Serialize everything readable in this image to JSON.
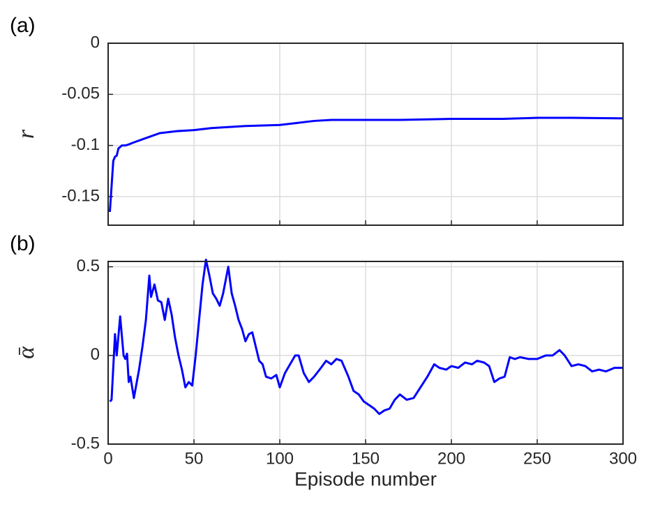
{
  "chart_data": [
    {
      "type": "line",
      "panel_label": "(a)",
      "ylabel": "r",
      "color": "#0000ff",
      "grid": true,
      "show_xticklabels": false,
      "x": [
        1,
        2,
        3,
        4,
        5,
        6,
        8,
        10,
        12,
        15,
        20,
        25,
        30,
        40,
        50,
        60,
        70,
        80,
        90,
        100,
        110,
        120,
        130,
        150,
        170,
        200,
        230,
        250,
        270,
        300
      ],
      "values": [
        -0.165,
        -0.14,
        -0.115,
        -0.111,
        -0.11,
        -0.103,
        -0.1,
        -0.1,
        -0.099,
        -0.097,
        -0.094,
        -0.091,
        -0.088,
        -0.086,
        -0.085,
        -0.083,
        -0.082,
        -0.081,
        -0.0805,
        -0.08,
        -0.078,
        -0.076,
        -0.075,
        -0.075,
        -0.075,
        -0.074,
        -0.074,
        -0.073,
        -0.073,
        -0.0735
      ],
      "xlim": [
        0,
        300
      ],
      "xticks": [
        0,
        50,
        100,
        150,
        200,
        250,
        300
      ],
      "ylim": [
        -0.178,
        0
      ],
      "yticks": [
        -0.15,
        -0.1,
        -0.05,
        0
      ]
    },
    {
      "type": "line",
      "panel_label": "(b)",
      "ylabel": "ᾱ",
      "xlabel": "Episode number",
      "color": "#0000ff",
      "grid": true,
      "show_xticklabels": true,
      "x": [
        1,
        2,
        4,
        5,
        7,
        9,
        10,
        11,
        12,
        13,
        15,
        18,
        20,
        22,
        24,
        25,
        27,
        29,
        31,
        33,
        35,
        37,
        39,
        41,
        43,
        45,
        47,
        49,
        51,
        53,
        55,
        57,
        59,
        61,
        63,
        65,
        67,
        70,
        72,
        74,
        76,
        78,
        80,
        82,
        84,
        86,
        88,
        90,
        92,
        95,
        98,
        100,
        103,
        106,
        109,
        111,
        114,
        117,
        120,
        124,
        127,
        130,
        133,
        136,
        140,
        143,
        146,
        149,
        152,
        155,
        158,
        161,
        164,
        167,
        170,
        174,
        178,
        182,
        186,
        190,
        193,
        197,
        200,
        204,
        208,
        212,
        215,
        219,
        222,
        225,
        228,
        231,
        234,
        237,
        240,
        245,
        250,
        255,
        259,
        263,
        266,
        270,
        274,
        278,
        282,
        286,
        290,
        295,
        300
      ],
      "values": [
        -0.26,
        -0.25,
        0.12,
        0.0,
        0.22,
        0.0,
        -0.02,
        0.01,
        -0.15,
        -0.12,
        -0.24,
        -0.08,
        0.05,
        0.2,
        0.45,
        0.33,
        0.4,
        0.31,
        0.3,
        0.2,
        0.32,
        0.23,
        0.1,
        0.0,
        -0.08,
        -0.18,
        -0.15,
        -0.17,
        0.0,
        0.2,
        0.4,
        0.54,
        0.45,
        0.35,
        0.32,
        0.28,
        0.35,
        0.5,
        0.35,
        0.28,
        0.2,
        0.15,
        0.08,
        0.12,
        0.13,
        0.05,
        -0.03,
        -0.05,
        -0.12,
        -0.13,
        -0.11,
        -0.18,
        -0.1,
        -0.05,
        0.0,
        0.0,
        -0.1,
        -0.15,
        -0.12,
        -0.07,
        -0.03,
        -0.05,
        -0.02,
        -0.03,
        -0.12,
        -0.2,
        -0.22,
        -0.26,
        -0.28,
        -0.3,
        -0.33,
        -0.31,
        -0.3,
        -0.25,
        -0.22,
        -0.25,
        -0.24,
        -0.18,
        -0.12,
        -0.05,
        -0.07,
        -0.08,
        -0.06,
        -0.07,
        -0.04,
        -0.05,
        -0.03,
        -0.04,
        -0.06,
        -0.15,
        -0.13,
        -0.12,
        -0.01,
        -0.02,
        -0.01,
        -0.02,
        -0.02,
        0.0,
        0.0,
        0.03,
        0.0,
        -0.06,
        -0.05,
        -0.06,
        -0.09,
        -0.08,
        -0.09,
        -0.07,
        -0.07
      ],
      "xlim": [
        0,
        300
      ],
      "xticks": [
        0,
        50,
        100,
        150,
        200,
        250,
        300
      ],
      "ylim": [
        -0.5,
        0.53
      ],
      "yticks": [
        -0.5,
        0,
        0.5
      ]
    }
  ]
}
